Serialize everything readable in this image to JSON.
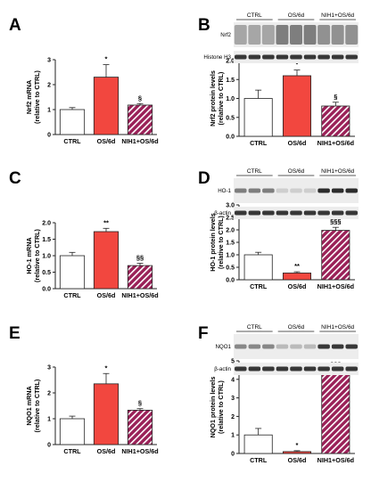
{
  "colors": {
    "ctrl": "#ffffff",
    "os": "#f2473f",
    "nih": "#9a2158",
    "nih_stripe": "#ffffff",
    "axis": "#222222",
    "blot_bg": "#ededed",
    "blot_band": "#222222"
  },
  "chart_data": [
    {
      "panel": "A",
      "type": "bar",
      "categories": [
        "CTRL",
        "OS/6d",
        "NIH1+OS/6d"
      ],
      "values": [
        1.0,
        2.3,
        1.18
      ],
      "errors": [
        0.08,
        0.5,
        0.06
      ],
      "sig": [
        "",
        "*",
        "§"
      ],
      "ylabel": "Nrf2 mRNA\n(relative to CTRL)",
      "ylim": [
        0,
        3
      ],
      "yticks": [
        "0",
        "1",
        "2",
        "3"
      ],
      "ytick_values": [
        0,
        1,
        2,
        3
      ],
      "grid": false
    },
    {
      "panel": "B",
      "type": "bar",
      "categories": [
        "CTRL",
        "OS/6d",
        "NIH1+OS/6d"
      ],
      "values": [
        1.0,
        1.6,
        0.8
      ],
      "errors": [
        0.22,
        0.15,
        0.1
      ],
      "sig": [
        "",
        "*",
        "§"
      ],
      "ylabel": "Nrf2 protein levels\n(relative to CTRL)",
      "ylim": [
        0,
        2
      ],
      "yticks": [
        "0.0",
        "0.5",
        "1.0",
        "1.5",
        "2.0"
      ],
      "ytick_values": [
        0,
        0.5,
        1,
        1.5,
        2
      ],
      "grid": false
    },
    {
      "panel": "C",
      "type": "bar",
      "categories": [
        "CTRL",
        "OS/6d",
        "NIH1+OS/6d"
      ],
      "values": [
        1.0,
        1.73,
        0.7
      ],
      "errors": [
        0.1,
        0.1,
        0.07
      ],
      "sig": [
        "",
        "**",
        "§§"
      ],
      "ylabel": "HO-1 mRNA\n(relative to CTRL)",
      "ylim": [
        0,
        2
      ],
      "yticks": [
        "0.0",
        "0.5",
        "1.0",
        "1.5",
        "2.0"
      ],
      "ytick_values": [
        0,
        0.5,
        1,
        1.5,
        2
      ],
      "grid": false
    },
    {
      "panel": "D",
      "type": "bar",
      "categories": [
        "CTRL",
        "OS/6d",
        "NIH1+OS/6d"
      ],
      "values": [
        1.0,
        0.27,
        1.98
      ],
      "errors": [
        0.1,
        0.05,
        0.12
      ],
      "sig": [
        "",
        "**",
        "**\n§§§"
      ],
      "ylabel": "HO-1 protein levels\n(relative to CTRL)",
      "ylim": [
        0,
        3
      ],
      "yticks": [
        "0.0",
        "0.5",
        "1.0",
        "1.5",
        "2.0",
        "2.5",
        "3.0"
      ],
      "ytick_values": [
        0,
        0.5,
        1,
        1.5,
        2,
        2.5,
        3
      ],
      "grid": false
    },
    {
      "panel": "E",
      "type": "bar",
      "categories": [
        "CTRL",
        "OS/6d",
        "NIH1+OS/6d"
      ],
      "values": [
        1.0,
        2.35,
        1.33
      ],
      "errors": [
        0.1,
        0.4,
        0.06
      ],
      "sig": [
        "",
        "*",
        "§"
      ],
      "ylabel": "NQO1 mRNA\n(relative to CTRL)",
      "ylim": [
        0,
        3
      ],
      "yticks": [
        "0",
        "1",
        "2",
        "3"
      ],
      "ytick_values": [
        0,
        1,
        2,
        3
      ],
      "grid": false
    },
    {
      "panel": "F",
      "type": "bar",
      "categories": [
        "CTRL",
        "OS/6d",
        "NIH1+OS/6d"
      ],
      "values": [
        1.0,
        0.1,
        4.4
      ],
      "errors": [
        0.35,
        0.05,
        0.1
      ],
      "sig": [
        "",
        "*",
        "***\n§§§"
      ],
      "ylabel": "NQO1 protein levels\n(relative to CTRL)",
      "ylim": [
        0,
        5
      ],
      "yticks": [
        "0",
        "1",
        "2",
        "3",
        "4",
        "5"
      ],
      "ytick_values": [
        0,
        1,
        2,
        3,
        4,
        5
      ],
      "grid": false
    }
  ],
  "blots": [
    {
      "panel": "B",
      "groups": [
        "CTRL",
        "OS/6d",
        "NIH1+OS/6d"
      ],
      "rows": [
        {
          "label": "Nrf2",
          "style": "smear"
        },
        {
          "label": "Histone H3",
          "style": "band"
        }
      ]
    },
    {
      "panel": "D",
      "groups": [
        "CTRL",
        "OS/6d",
        "NIH1+OS/6d"
      ],
      "rows": [
        {
          "label": "HO-1",
          "style": "band",
          "intensity": [
            0.55,
            0.15,
            0.95
          ]
        },
        {
          "label": "β-actin",
          "style": "band"
        }
      ]
    },
    {
      "panel": "F",
      "groups": [
        "CTRL",
        "OS/6d",
        "NIH1+OS/6d"
      ],
      "rows": [
        {
          "label": "NQO1",
          "style": "band",
          "intensity": [
            0.5,
            0.25,
            0.9
          ]
        },
        {
          "label": "β-actin",
          "style": "band"
        }
      ]
    }
  ]
}
